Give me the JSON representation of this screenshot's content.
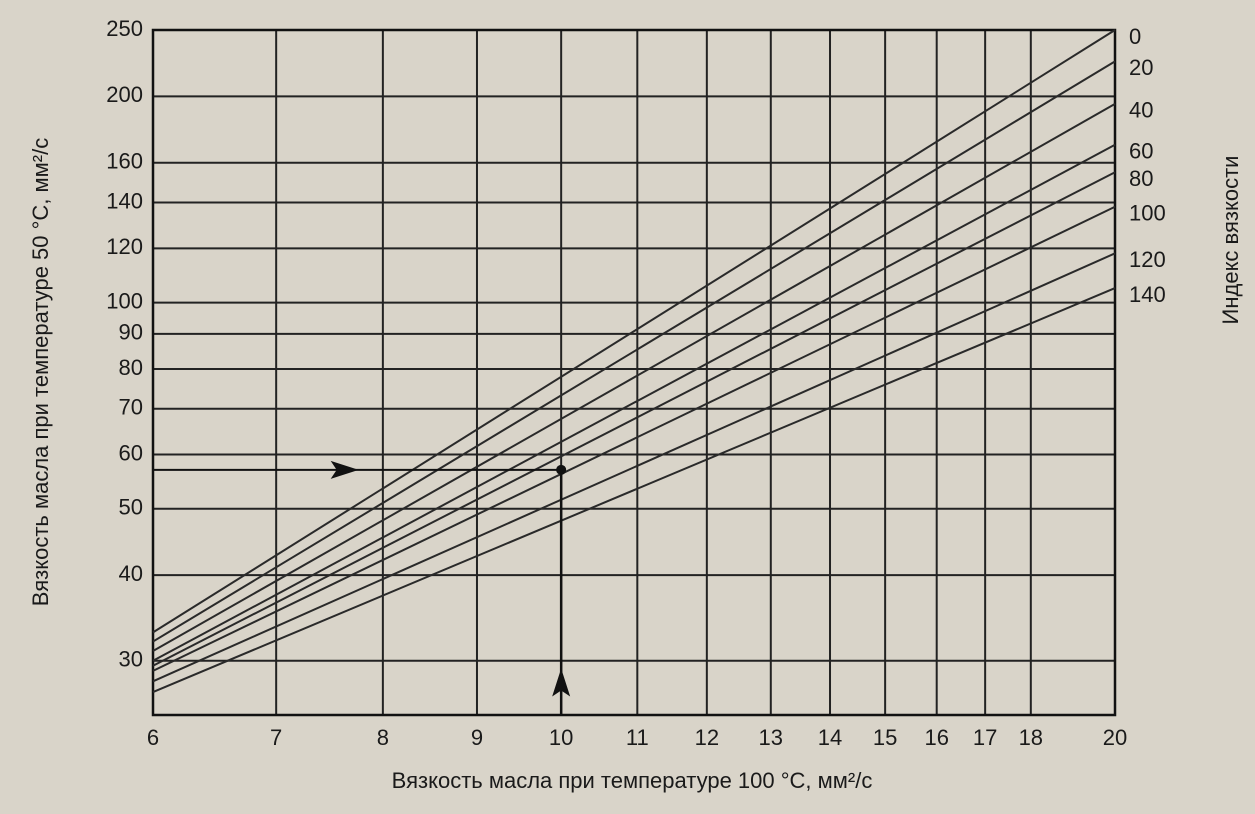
{
  "chart_data": {
    "type": "line",
    "x_label": "Вязкость масла при температуре 100 °С, мм²/с",
    "y_label": "Вязкость масла при температуре 50 °С, мм²/с",
    "y2_label": "Индекс вязкости",
    "log_x": true,
    "log_y": true,
    "grid": true,
    "xlim": [
      6,
      20
    ],
    "xticks": [
      6,
      7,
      8,
      9,
      10,
      11,
      12,
      13,
      14,
      15,
      16,
      17,
      18,
      20
    ],
    "ylim": [
      25,
      250
    ],
    "yticks": [
      30,
      40,
      50,
      60,
      70,
      80,
      90,
      100,
      120,
      140,
      160,
      200,
      250
    ],
    "x": [
      6,
      20
    ],
    "series": [
      {
        "name": "0",
        "color": "#2a2a2a",
        "values": [
          33,
          250
        ]
      },
      {
        "name": "20",
        "color": "#2a2a2a",
        "values": [
          32,
          225
        ]
      },
      {
        "name": "40",
        "color": "#2a2a2a",
        "values": [
          31,
          195
        ]
      },
      {
        "name": "60",
        "color": "#2a2a2a",
        "values": [
          30,
          170
        ]
      },
      {
        "name": "80",
        "color": "#2a2a2a",
        "values": [
          29.5,
          155
        ]
      },
      {
        "name": "100",
        "color": "#2a2a2a",
        "values": [
          29,
          138
        ]
      },
      {
        "name": "120",
        "color": "#2a2a2a",
        "values": [
          28,
          118
        ]
      },
      {
        "name": "140",
        "color": "#2a2a2a",
        "values": [
          27,
          105
        ]
      }
    ],
    "example_point": {
      "x": 10,
      "y": 57
    }
  }
}
